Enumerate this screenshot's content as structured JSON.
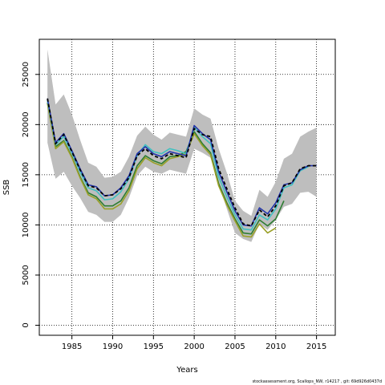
{
  "chart_data": {
    "type": "line",
    "title": "",
    "xlabel": "Years",
    "ylabel": "SSB",
    "xlim": [
      1981,
      2017.3
    ],
    "ylim": [
      -1000,
      28500
    ],
    "x_ticks": [
      1985,
      1990,
      1995,
      2000,
      2005,
      2010,
      2015
    ],
    "y_ticks": [
      0,
      5000,
      10000,
      15000,
      20000,
      25000
    ],
    "grid": true,
    "band": {
      "x": [
        1982,
        1983,
        1984,
        1985,
        1986,
        1987,
        1988,
        1989,
        1990,
        1991,
        1992,
        1993,
        1994,
        1995,
        1996,
        1997,
        1998,
        1999,
        2000,
        2001,
        2002,
        2003,
        2004,
        2005,
        2006,
        2007,
        2008,
        2009,
        2010,
        2011,
        2012,
        2013,
        2014,
        2015
      ],
      "upper": [
        27500,
        22000,
        23000,
        21000,
        18500,
        16200,
        15800,
        14700,
        14800,
        15300,
        16800,
        18900,
        19800,
        19000,
        18500,
        19200,
        19000,
        18800,
        21600,
        21000,
        20600,
        17600,
        15200,
        12400,
        11400,
        10900,
        13500,
        12800,
        14300,
        16600,
        17100,
        18800,
        19300,
        19700
      ],
      "lower": [
        18200,
        14600,
        15300,
        13900,
        12700,
        11300,
        11000,
        10300,
        10300,
        11000,
        12700,
        14900,
        15800,
        15300,
        15100,
        15500,
        15300,
        15100,
        17600,
        17200,
        16700,
        14100,
        11600,
        9200,
        8600,
        8300,
        10100,
        9500,
        10500,
        11800,
        12100,
        13200,
        13300,
        12800
      ]
    },
    "series": [
      {
        "color": "#000000",
        "dashed": true,
        "x": [
          1982,
          1983,
          1984,
          1985,
          1986,
          1987,
          1988,
          1989,
          1990,
          1991,
          1992,
          1993,
          1994,
          1995,
          1996,
          1997,
          1998,
          1999,
          2000,
          2001,
          2002,
          2003,
          2004,
          2005,
          2006,
          2007,
          2008,
          2009,
          2010,
          2011,
          2012,
          2013,
          2014,
          2015
        ],
        "values": [
          22600,
          18100,
          19000,
          17300,
          15500,
          13900,
          13700,
          12900,
          13000,
          13600,
          14700,
          16900,
          17600,
          16900,
          16600,
          17100,
          16900,
          16700,
          19600,
          19000,
          18800,
          15600,
          13600,
          11700,
          10100,
          9900,
          11500,
          10800,
          11900,
          13900,
          14200,
          15600,
          15900,
          15900
        ]
      },
      {
        "color": "#2233aa",
        "dashed": false,
        "x": [
          1982,
          1983,
          1984,
          1985,
          1986,
          1987,
          1988,
          1989,
          1990,
          1991,
          1992,
          1993,
          1994,
          1995,
          1996,
          1997,
          1998,
          1999,
          2000,
          2001,
          2002,
          2003,
          2004,
          2005,
          2006,
          2007,
          2008,
          2009,
          2010,
          2011,
          2012,
          2013,
          2014,
          2015
        ],
        "values": [
          22600,
          18200,
          19100,
          17400,
          15600,
          14000,
          13800,
          12900,
          13000,
          13700,
          14900,
          17100,
          17800,
          17100,
          16800,
          17300,
          17100,
          16900,
          19900,
          19100,
          18500,
          15300,
          13300,
          11400,
          10000,
          9900,
          11700,
          11100,
          12200,
          14000,
          14200,
          15500,
          15900,
          15900
        ]
      },
      {
        "color": "#40c0c0",
        "dashed": false,
        "x": [
          1982,
          1983,
          1984,
          1985,
          1986,
          1987,
          1988,
          1989,
          1990,
          1991,
          1992,
          1993,
          1994,
          1995,
          1996,
          1997,
          1998,
          1999,
          2000,
          2001,
          2002,
          2003,
          2004,
          2005,
          2006,
          2007,
          2008,
          2009,
          2010,
          2011,
          2012,
          2013,
          2014
        ],
        "values": [
          22400,
          18000,
          18800,
          17200,
          15300,
          13700,
          13400,
          12500,
          12600,
          13300,
          14600,
          16900,
          18000,
          17300,
          17100,
          17600,
          17400,
          17100,
          19700,
          18800,
          18100,
          14800,
          12800,
          11000,
          9600,
          9500,
          11000,
          10500,
          11600,
          13700,
          14000,
          15400,
          15800
        ]
      },
      {
        "color": "#2e7d32",
        "dashed": false,
        "x": [
          1982,
          1983,
          1984,
          1985,
          1986,
          1987,
          1988,
          1989,
          1990,
          1991,
          1992,
          1993,
          1994,
          1995,
          1996,
          1997,
          1998,
          1999,
          2000,
          2001,
          2002,
          2003,
          2004,
          2005,
          2006,
          2007,
          2008,
          2009,
          2010,
          2011
        ],
        "values": [
          22200,
          17800,
          18400,
          16800,
          14800,
          13200,
          12800,
          11900,
          11900,
          12400,
          13700,
          15900,
          16900,
          16400,
          16100,
          16800,
          16900,
          17300,
          19300,
          18100,
          17200,
          14100,
          12200,
          10600,
          9200,
          9100,
          10500,
          9900,
          10600,
          12400
        ]
      },
      {
        "color": "#9aa028",
        "dashed": false,
        "x": [
          1982,
          1983,
          1984,
          1985,
          1986,
          1987,
          1988,
          1989,
          1990,
          1991,
          1992,
          1993,
          1994,
          1995,
          1996,
          1997,
          1998,
          1999,
          2000,
          2001,
          2002,
          2003,
          2004,
          2005,
          2006,
          2007,
          2008,
          2009,
          2010
        ],
        "values": [
          22100,
          17600,
          18300,
          16700,
          14700,
          13000,
          12600,
          11600,
          11600,
          12100,
          13400,
          15600,
          16700,
          16200,
          15900,
          16600,
          16800,
          17100,
          19100,
          17900,
          17000,
          13900,
          12000,
          10400,
          8900,
          8800,
          10100,
          9200,
          9700
        ]
      }
    ]
  },
  "footer_text": "stockassessment.org, Scallops_NW, r14217 , git: 69d926d0437d"
}
